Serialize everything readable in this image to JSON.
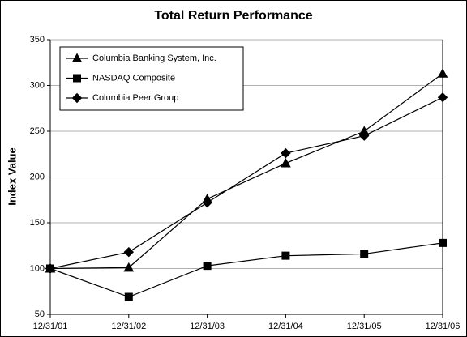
{
  "chart_data": {
    "type": "line",
    "title": "Total Return Performance",
    "y_label": "Index Value",
    "categories": [
      "12/31/01",
      "12/31/02",
      "12/31/03",
      "12/31/04",
      "12/31/05",
      "12/31/06"
    ],
    "series": [
      {
        "name": "Columbia Banking System, Inc.",
        "color": "#000000",
        "marker": "triangle",
        "values": [
          100,
          101,
          176,
          215,
          250,
          313
        ]
      },
      {
        "name": "NASDAQ Composite",
        "color": "#000000",
        "marker": "square",
        "values": [
          100,
          69,
          103,
          114,
          116,
          128
        ]
      },
      {
        "name": "Columbia Peer Group",
        "color": "#000000",
        "marker": "diamond",
        "values": [
          100,
          118,
          172,
          226,
          245,
          287
        ]
      }
    ],
    "ylim": [
      50,
      350
    ],
    "yticks": [
      50,
      100,
      150,
      200,
      250,
      300,
      350
    ],
    "grid": true,
    "legend": "upper-left"
  }
}
